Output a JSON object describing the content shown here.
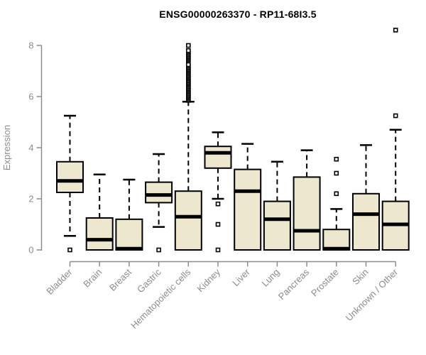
{
  "page": {
    "title": "ENSG00000263370 - RP11-68I3.5"
  },
  "colors": {
    "background": "#ffffff",
    "box_fill": "#ece7cd",
    "box_border": "#000000",
    "median": "#000000",
    "whisker": "#000000",
    "outlier_fill": "#ffffff",
    "outlier_border": "#000000",
    "axis": "#8c8c8c",
    "tick_label": "#8c8c8c",
    "axis_label": "#8c8c8c",
    "title": "#000000"
  },
  "chart_data": {
    "type": "box",
    "title": "ENSG00000263370 - RP11-68I3.5",
    "xlabel": "",
    "ylabel": "Expression",
    "ylim": [
      0,
      8.7
    ],
    "yticks": [
      0,
      2,
      4,
      6,
      8
    ],
    "grid": false,
    "legend": false,
    "categories": [
      "Bladder",
      "Brain",
      "Breast",
      "Gastric",
      "Hematopoietic cells",
      "Kidney",
      "Liver",
      "Lung",
      "Pancreas",
      "Prostate",
      "Skin",
      "Unknown / Other"
    ],
    "boxes": [
      {
        "category": "Bladder",
        "low": 0.55,
        "q1": 2.25,
        "median": 2.7,
        "q3": 3.45,
        "high": 5.25,
        "outliers": [
          0
        ]
      },
      {
        "category": "Brain",
        "low": 0,
        "q1": 0,
        "median": 0.4,
        "q3": 1.25,
        "high": 2.95,
        "outliers": []
      },
      {
        "category": "Breast",
        "low": 0,
        "q1": 0,
        "median": 0.05,
        "q3": 1.2,
        "high": 2.75,
        "outliers": []
      },
      {
        "category": "Gastric",
        "low": 0.9,
        "q1": 1.85,
        "median": 2.15,
        "q3": 2.65,
        "high": 3.75,
        "outliers": [
          0
        ]
      },
      {
        "category": "Hematopoietic cells",
        "low": 0,
        "q1": 0,
        "median": 1.3,
        "q3": 2.3,
        "high": 5.8,
        "outliers": [
          5.85,
          5.9,
          5.95,
          6.0,
          6.05,
          6.1,
          6.15,
          6.2,
          6.25,
          6.3,
          6.35,
          6.4,
          6.45,
          6.5,
          6.55,
          6.6,
          6.65,
          6.7,
          6.75,
          6.8,
          6.85,
          6.9,
          6.95,
          7.0,
          7.05,
          7.1,
          7.15,
          7.2,
          7.25,
          7.4,
          7.45,
          7.5,
          7.55,
          7.6,
          7.65,
          7.7,
          7.75,
          7.8,
          8.0
        ]
      },
      {
        "category": "Kidney",
        "low": 2,
        "q1": 3.2,
        "median": 3.8,
        "q3": 4.05,
        "high": 4.6,
        "outliers": [
          1.8,
          1,
          0
        ]
      },
      {
        "category": "Liver",
        "low": 0,
        "q1": 0,
        "median": 2.3,
        "q3": 3.15,
        "high": 4.15,
        "outliers": []
      },
      {
        "category": "Lung",
        "low": 0,
        "q1": 0,
        "median": 1.2,
        "q3": 1.9,
        "high": 3.45,
        "outliers": []
      },
      {
        "category": "Pancreas",
        "low": 0,
        "q1": 0,
        "median": 0.75,
        "q3": 2.85,
        "high": 3.9,
        "outliers": []
      },
      {
        "category": "Prostate",
        "low": 0,
        "q1": 0,
        "median": 0.05,
        "q3": 0.8,
        "high": 1.6,
        "outliers": [
          2.2,
          3,
          3.55
        ]
      },
      {
        "category": "Skin",
        "low": 0,
        "q1": 0,
        "median": 1.4,
        "q3": 2.2,
        "high": 4.1,
        "outliers": []
      },
      {
        "category": "Unknown / Other",
        "low": 0,
        "q1": 0,
        "median": 1,
        "q3": 1.9,
        "high": 4.7,
        "outliers": [
          5.25,
          8.6
        ]
      }
    ]
  }
}
